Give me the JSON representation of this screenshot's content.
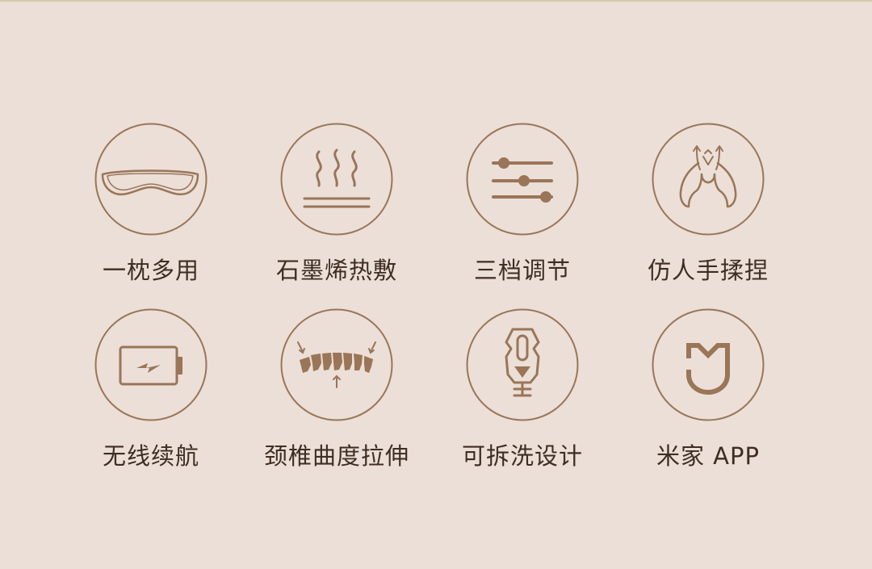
{
  "features": [
    {
      "label": "一枕多用",
      "icon": "pillow-icon"
    },
    {
      "label": "石墨烯热敷",
      "icon": "heat-wave-icon"
    },
    {
      "label": "三档调节",
      "icon": "slider-settings-icon"
    },
    {
      "label": "仿人手揉捏",
      "icon": "hand-kneading-icon"
    },
    {
      "label": "无线续航",
      "icon": "battery-charging-icon"
    },
    {
      "label": "颈椎曲度拉伸",
      "icon": "spine-stretch-icon"
    },
    {
      "label": "可拆洗设计",
      "icon": "zipper-icon"
    },
    {
      "label": "米家 APP",
      "icon": "mijia-logo-icon"
    }
  ],
  "colors": {
    "background": "#ebdfd7",
    "icon_stroke": "#9a7557",
    "label_text": "#3e2d22"
  }
}
